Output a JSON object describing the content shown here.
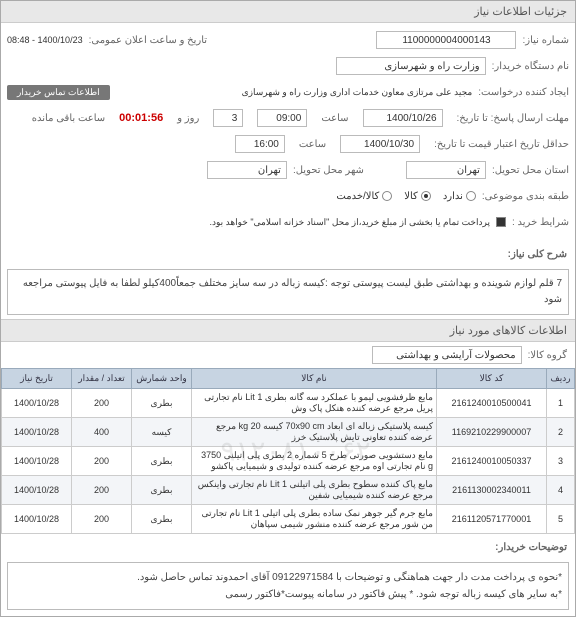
{
  "panel_title": "جزئیات اطلاعات نیاز",
  "header": {
    "need_no_label": "شماره نیاز:",
    "need_no": "1100000004000143",
    "announce_label": "تاریخ و ساعت اعلان عمومی:",
    "announce": "1400/10/23 - 08:48",
    "buyer_label": "نام دستگاه خریدار:",
    "buyer": "وزارت راه و شهرسازی",
    "requester_label": "ایجاد کننده درخواست:",
    "requester": "مجید علی  مرتازی معاون خدمات اداری وزارت راه و شهرسازی",
    "tag": "اطلاعات تماس خریدار",
    "deadline_label": "مهلت ارسال پاسخ: تا تاریخ:",
    "deadline_date": "1400/10/26",
    "deadline_time_label": "ساعت",
    "deadline_time": "09:00",
    "days_label": "روز و",
    "days": "3",
    "remain_label": "ساعت باقی مانده",
    "remain": "00:01:56",
    "valid_label": "حداقل تاریخ اعتبار قیمت تا تاریخ:",
    "valid_date": "1400/10/30",
    "valid_time_label": "ساعت",
    "valid_time": "16:00",
    "province_label": "استان محل تحویل:",
    "province": "تهران",
    "city_label": "شهر محل تحویل:",
    "city": "تهران",
    "shipping_label": "طبقه بندی موضوعی:",
    "shipping_none": "ندارد",
    "shipping_goods": "کالا",
    "shipping_service": "کالا/خدمت",
    "payment_label": "شرایط خرید :",
    "payment_note": "پرداخت تمام یا بخشی از مبلغ خرید،از محل \"اسناد خزانه اسلامی\" خواهد بود."
  },
  "desc": {
    "label": "شرح کلی نیاز:",
    "text": "7 قلم لوازم شوینده و بهداشتی طبق لیست پیوستی توجه :کیسه زباله در سه سایز مختلف جمعاً400کیلو لطفا به فایل پیوستی مراجعه شود"
  },
  "items_section": "اطلاعات کالاهای مورد نیاز",
  "group": {
    "label": "گروه کالا:",
    "value": "محصولات آرایشی و بهداشتی"
  },
  "table": {
    "cols": [
      "ردیف",
      "کد کالا",
      "نام کالا",
      "واحد شمارش",
      "تعداد / مقدار",
      "تاریخ نیاز"
    ],
    "rows": [
      [
        "1",
        "2161240010500041",
        "مایع ظرفشویی لیمو با عملکرد سه گانه بطری 1 Lit نام تجارتی پریل مرجع عرضه کننده هنکل پاک وش",
        "بطری",
        "200",
        "1400/10/28"
      ],
      [
        "2",
        "1169210229900007",
        "کیسه پلاستیکی زباله ای ابعاد 70x90 cm کیسه 20 kg مرجع عرضه کننده تعاونی تایش پلاستیک خرز",
        "کیسه",
        "400",
        "1400/10/28"
      ],
      [
        "3",
        "2161240010050337",
        "مایع دستشویی صورتی طرح 5 شماره 2 بطری پلی اتیلنی 3750 g نام تجارتی اوه مرجع عرضه کننده تولیدی و شیمیایی پاکشو",
        "بطری",
        "200",
        "1400/10/28"
      ],
      [
        "4",
        "2161130002340011",
        "مایع پاک کننده سطوح بطری پلی اتیلنی 1 Lit نام تجارتی واینکس مرجع عرضه کننده شیمیایی شفین",
        "بطری",
        "200",
        "1400/10/28"
      ],
      [
        "5",
        "2161120571770001",
        "مایع جرم گیر جوهر نمک ساده بطری پلی اتیلی 1 Lit نام تجارتی من شور مرجع عرضه کننده منشور شیمی سپاهان",
        "بطری",
        "200",
        "1400/10/28"
      ]
    ]
  },
  "notes": {
    "label": "توضیحات خریدار:",
    "line1": "*نحوه ی پرداخت مدت دار جهت هماهنگی و توضیحات با 09122971584 آقای احمدوند تماس حاصل شود.",
    "line2": "*به سایر های کیسه زباله توجه شود. *  پیش فاکتور در سامانه پیوست*فاکتور رسمی"
  },
  "watermark": "۰۹۱۲۰۸۱۰۰۶۲"
}
